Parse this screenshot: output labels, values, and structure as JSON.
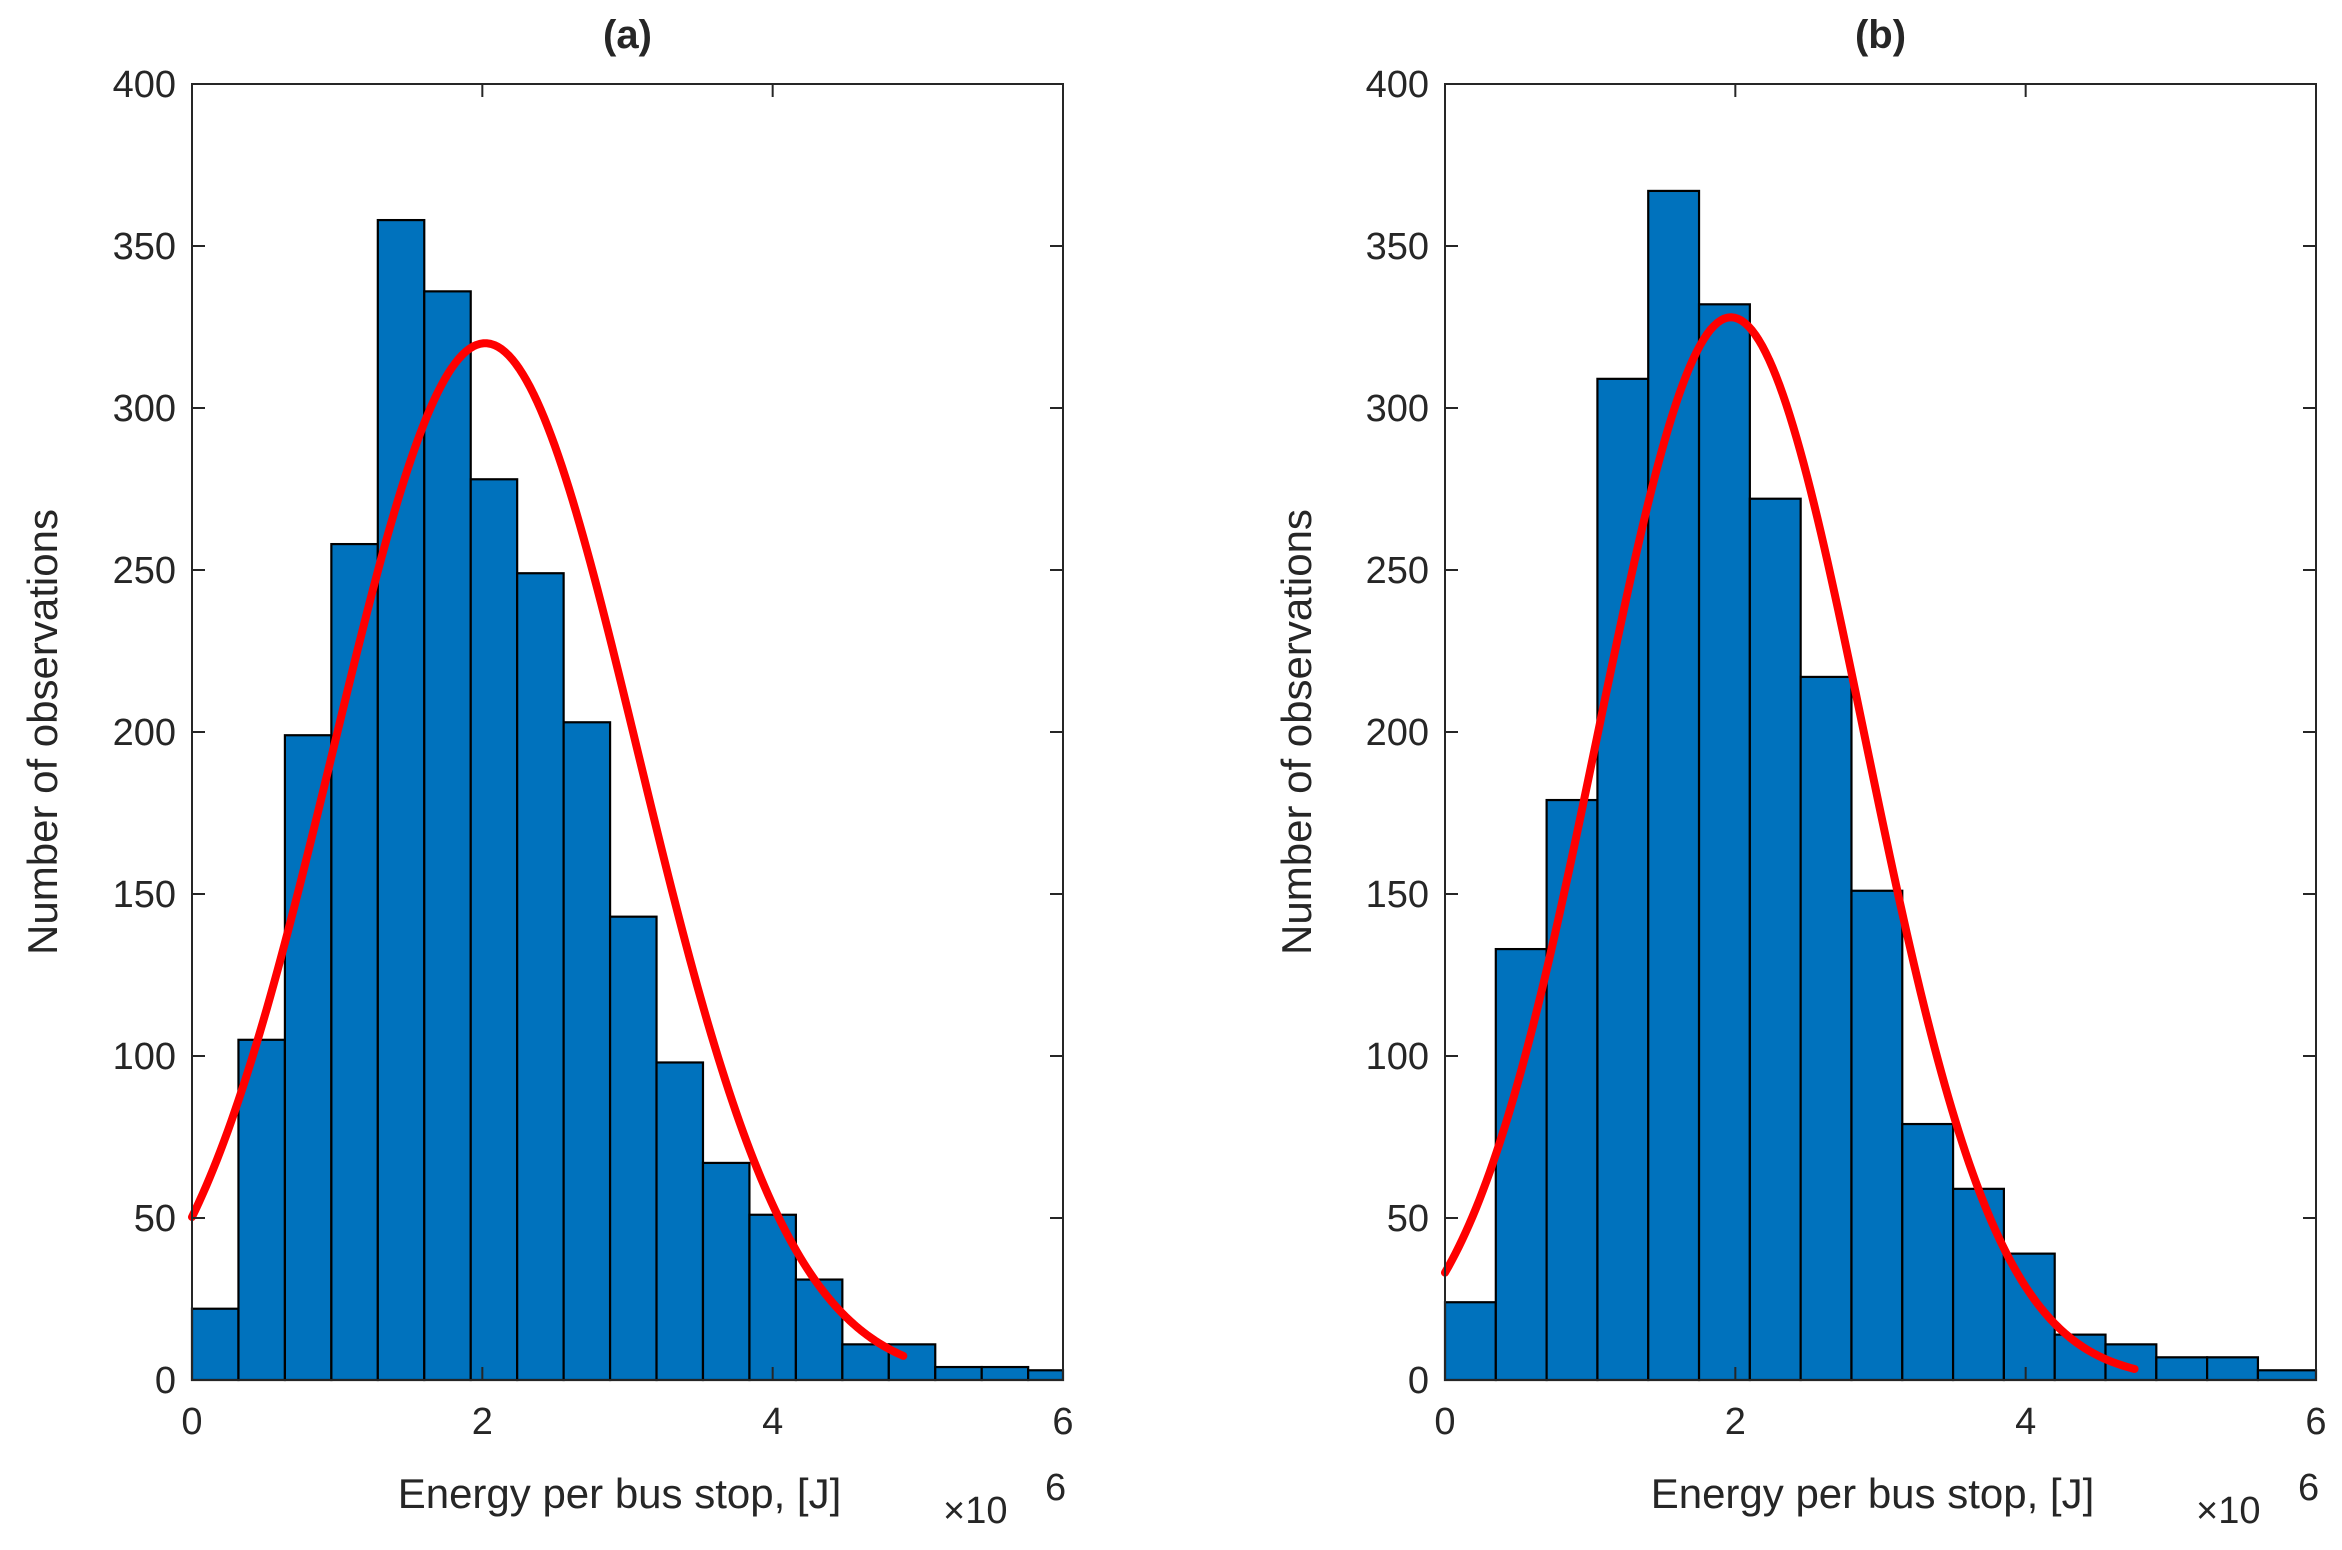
{
  "figure": {
    "colors": {
      "bar": "#0072BD",
      "bar_edge": "#000000",
      "fit_line": "#FF0000",
      "axis": "#262626"
    }
  },
  "chart_data": [
    {
      "type": "bar",
      "title": "(a)",
      "xlabel": "Energy per bus stop, [J]",
      "ylabel": "Number of observations",
      "x_exponent_label": "×10",
      "x_exponent_power": "6",
      "xlim": [
        0,
        6
      ],
      "ylim": [
        0,
        400
      ],
      "xticks": [
        0,
        2,
        4,
        6
      ],
      "xtick_labels": [
        "0",
        "2",
        "4",
        "6"
      ],
      "yticks": [
        0,
        50,
        100,
        150,
        200,
        250,
        300,
        350,
        400
      ],
      "ytick_labels": [
        "0",
        "50",
        "100",
        "150",
        "200",
        "250",
        "300",
        "350",
        "400"
      ],
      "grid": false,
      "bin_edges": [
        0,
        0.32,
        0.64,
        0.96,
        1.28,
        1.6,
        1.92,
        2.24,
        2.56,
        2.88,
        3.2,
        3.52,
        3.84,
        4.16,
        4.48,
        4.8,
        5.12,
        5.44,
        5.76,
        6.0
      ],
      "values": [
        22,
        105,
        199,
        258,
        358,
        336,
        278,
        249,
        203,
        143,
        98,
        67,
        51,
        31,
        11,
        11,
        4,
        4,
        3
      ],
      "fit": {
        "type": "normal",
        "mean": 2.02,
        "sigma": 1.05,
        "peak": 320,
        "x_start": 0,
        "x_end": 4.9
      }
    },
    {
      "type": "bar",
      "title": "(b)",
      "xlabel": "Energy per bus stop, [J]",
      "ylabel": "Number of observations",
      "x_exponent_label": "×10",
      "x_exponent_power": "6",
      "xlim": [
        0,
        6
      ],
      "ylim": [
        0,
        400
      ],
      "xticks": [
        0,
        2,
        4,
        6
      ],
      "xtick_labels": [
        "0",
        "2",
        "4",
        "6"
      ],
      "yticks": [
        0,
        50,
        100,
        150,
        200,
        250,
        300,
        350,
        400
      ],
      "ytick_labels": [
        "0",
        "50",
        "100",
        "150",
        "200",
        "250",
        "300",
        "350",
        "400"
      ],
      "grid": false,
      "bin_edges": [
        0,
        0.35,
        0.7,
        1.05,
        1.4,
        1.75,
        2.1,
        2.45,
        2.8,
        3.15,
        3.5,
        3.85,
        4.2,
        4.55,
        4.9,
        5.25,
        5.6,
        6.0
      ],
      "values": [
        24,
        133,
        179,
        309,
        367,
        332,
        272,
        217,
        151,
        79,
        59,
        39,
        14,
        11,
        7,
        7,
        3
      ],
      "fit": {
        "type": "normal",
        "mean": 1.97,
        "sigma": 0.92,
        "peak": 328,
        "x_start": 0,
        "x_end": 4.75
      }
    }
  ]
}
